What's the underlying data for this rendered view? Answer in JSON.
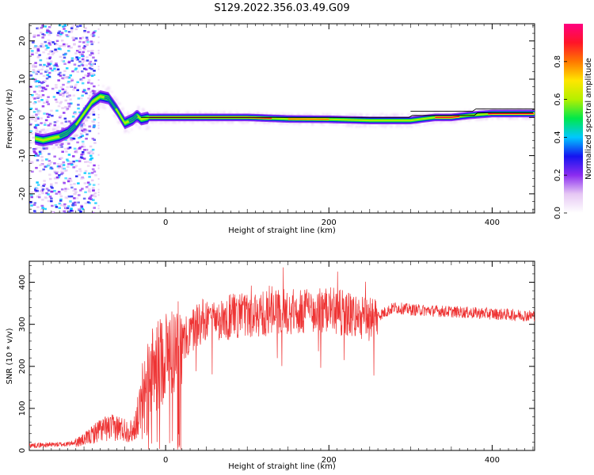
{
  "figure": {
    "title": "S129.2022.356.03.49.G09"
  },
  "chart_data": [
    {
      "type": "heatmap",
      "xlabel": "Height of straight line (km)",
      "ylabel": "Frequency (Hz)",
      "xlim": [
        -167,
        452
      ],
      "ylim": [
        -25,
        24.5
      ],
      "xticks": [
        0,
        200,
        400
      ],
      "yticks": [
        -20,
        -10,
        0,
        10,
        20
      ],
      "colorbar": {
        "label": "Normalized spectral amplitude",
        "range": [
          0,
          1
        ],
        "ticks": [
          0.0,
          0.2,
          0.4,
          0.6,
          0.8
        ],
        "colormap": [
          "#ffffff",
          "#e6c8f4",
          "#8b2cf0",
          "#1414f0",
          "#00c8ff",
          "#00e84a",
          "#b4f000",
          "#ffe600",
          "#ff7800",
          "#ff1428",
          "#ff0080"
        ]
      },
      "ridge": {
        "x": [
          -160,
          -150,
          -140,
          -130,
          -120,
          -110,
          -100,
          -90,
          -80,
          -70,
          -60,
          -50,
          -45,
          -40,
          -35,
          -30,
          -20,
          0,
          50,
          100,
          150,
          200,
          250,
          300,
          330,
          350,
          370,
          400,
          452
        ],
        "y": [
          -5.5,
          -6,
          -5.5,
          -5,
          -4,
          -2,
          1,
          4,
          5.5,
          5,
          2,
          -1.5,
          -1,
          -0.5,
          0.5,
          -0.5,
          0,
          0,
          0,
          0,
          -0.4,
          -0.5,
          -0.8,
          -0.8,
          0,
          0,
          0.5,
          1,
          1
        ]
      }
    },
    {
      "type": "line",
      "xlabel": "Height of straight line (km)",
      "ylabel": "SNR (10 * v/v)",
      "xlim": [
        -167,
        452
      ],
      "ylim": [
        0,
        450
      ],
      "xticks": [
        0,
        200,
        400
      ],
      "yticks": [
        0,
        100,
        200,
        300,
        400
      ],
      "series": [
        {
          "color": "#ee3333",
          "envelope": {
            "x": [
              -167,
              -120,
              -100,
              -80,
              -60,
              -40,
              -20,
              0,
              20,
              40,
              60,
              100,
              150,
              200,
              250,
              280,
              300,
              350,
              400,
              452
            ],
            "y": [
              12,
              15,
              25,
              50,
              55,
              45,
              170,
              230,
              250,
              305,
              315,
              320,
              330,
              335,
              310,
              340,
              335,
              330,
              325,
              320
            ]
          }
        }
      ]
    }
  ]
}
